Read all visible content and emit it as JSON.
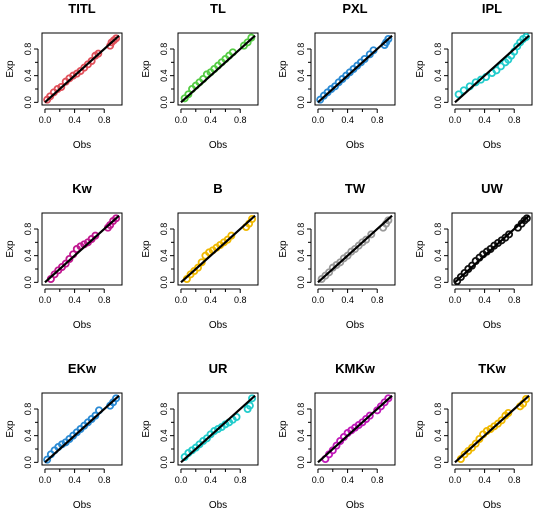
{
  "chart_data": [
    {
      "type": "scatter",
      "title": "TITL",
      "xlabel": "Obs",
      "ylabel": "Exp",
      "color": "#e0505a",
      "xlim": [
        0,
        1
      ],
      "ylim": [
        0,
        1
      ],
      "xticks": [
        "0.0",
        "0.4",
        "0.8"
      ],
      "yticks": [
        "0.0",
        "0.4",
        "0.8"
      ],
      "points": [
        [
          0.03,
          0.04
        ],
        [
          0.07,
          0.09
        ],
        [
          0.12,
          0.15
        ],
        [
          0.17,
          0.2
        ],
        [
          0.22,
          0.23
        ],
        [
          0.28,
          0.31
        ],
        [
          0.33,
          0.36
        ],
        [
          0.38,
          0.4
        ],
        [
          0.43,
          0.43
        ],
        [
          0.48,
          0.47
        ],
        [
          0.53,
          0.52
        ],
        [
          0.58,
          0.57
        ],
        [
          0.63,
          0.62
        ],
        [
          0.68,
          0.7
        ],
        [
          0.72,
          0.73
        ],
        [
          0.88,
          0.85
        ],
        [
          0.9,
          0.9
        ],
        [
          0.93,
          0.93
        ],
        [
          0.96,
          0.96
        ]
      ],
      "line": [
        [
          0,
          0
        ],
        [
          1,
          1
        ]
      ]
    },
    {
      "type": "scatter",
      "title": "TL",
      "xlabel": "Obs",
      "ylabel": "Exp",
      "color": "#55cc44",
      "xlim": [
        0,
        1
      ],
      "ylim": [
        0,
        1
      ],
      "xticks": [
        "0.0",
        "0.4",
        "0.8"
      ],
      "yticks": [
        "0.0",
        "0.4",
        "0.8"
      ],
      "points": [
        [
          0.05,
          0.06
        ],
        [
          0.1,
          0.12
        ],
        [
          0.15,
          0.2
        ],
        [
          0.2,
          0.25
        ],
        [
          0.25,
          0.3
        ],
        [
          0.3,
          0.35
        ],
        [
          0.35,
          0.42
        ],
        [
          0.4,
          0.45
        ],
        [
          0.45,
          0.5
        ],
        [
          0.5,
          0.55
        ],
        [
          0.55,
          0.6
        ],
        [
          0.6,
          0.65
        ],
        [
          0.65,
          0.7
        ],
        [
          0.7,
          0.75
        ],
        [
          0.85,
          0.85
        ],
        [
          0.9,
          0.9
        ],
        [
          0.95,
          0.97
        ]
      ],
      "line": [
        [
          0,
          0
        ],
        [
          1,
          1
        ]
      ]
    },
    {
      "type": "scatter",
      "title": "PXL",
      "xlabel": "Obs",
      "ylabel": "Exp",
      "color": "#2a8ad4",
      "xlim": [
        0,
        1
      ],
      "ylim": [
        0,
        1
      ],
      "xticks": [
        "0.0",
        "0.4",
        "0.8"
      ],
      "yticks": [
        "0.0",
        "0.4",
        "0.8"
      ],
      "points": [
        [
          0.03,
          0.04
        ],
        [
          0.08,
          0.1
        ],
        [
          0.13,
          0.15
        ],
        [
          0.18,
          0.2
        ],
        [
          0.23,
          0.24
        ],
        [
          0.28,
          0.3
        ],
        [
          0.33,
          0.35
        ],
        [
          0.38,
          0.4
        ],
        [
          0.43,
          0.45
        ],
        [
          0.48,
          0.5
        ],
        [
          0.53,
          0.55
        ],
        [
          0.58,
          0.6
        ],
        [
          0.63,
          0.65
        ],
        [
          0.7,
          0.72
        ],
        [
          0.75,
          0.78
        ],
        [
          0.9,
          0.86
        ],
        [
          0.92,
          0.9
        ],
        [
          0.95,
          0.95
        ]
      ],
      "line": [
        [
          0,
          0
        ],
        [
          1,
          1
        ]
      ]
    },
    {
      "type": "scatter",
      "title": "IPL",
      "xlabel": "Obs",
      "ylabel": "Exp",
      "color": "#22cccc",
      "xlim": [
        0,
        1
      ],
      "ylim": [
        0,
        1
      ],
      "xticks": [
        "0.0",
        "0.4",
        "0.8"
      ],
      "yticks": [
        "0.0",
        "0.4",
        "0.8"
      ],
      "points": [
        [
          0.05,
          0.12
        ],
        [
          0.12,
          0.18
        ],
        [
          0.2,
          0.24
        ],
        [
          0.28,
          0.3
        ],
        [
          0.35,
          0.34
        ],
        [
          0.42,
          0.38
        ],
        [
          0.5,
          0.44
        ],
        [
          0.56,
          0.48
        ],
        [
          0.62,
          0.54
        ],
        [
          0.68,
          0.6
        ],
        [
          0.72,
          0.64
        ],
        [
          0.76,
          0.7
        ],
        [
          0.8,
          0.76
        ],
        [
          0.84,
          0.84
        ],
        [
          0.88,
          0.9
        ],
        [
          0.92,
          0.95
        ],
        [
          0.96,
          0.98
        ]
      ],
      "line": [
        [
          0,
          0
        ],
        [
          1,
          1
        ]
      ]
    },
    {
      "type": "scatter",
      "title": "Kw",
      "xlabel": "Obs",
      "ylabel": "Exp",
      "color": "#c01890",
      "xlim": [
        0,
        1
      ],
      "ylim": [
        0,
        1
      ],
      "xticks": [
        "0.0",
        "0.4",
        "0.8"
      ],
      "yticks": [
        "0.0",
        "0.4",
        "0.8"
      ],
      "points": [
        [
          0.08,
          0.05
        ],
        [
          0.13,
          0.12
        ],
        [
          0.18,
          0.18
        ],
        [
          0.23,
          0.23
        ],
        [
          0.28,
          0.28
        ],
        [
          0.33,
          0.35
        ],
        [
          0.38,
          0.42
        ],
        [
          0.43,
          0.5
        ],
        [
          0.48,
          0.54
        ],
        [
          0.53,
          0.57
        ],
        [
          0.58,
          0.6
        ],
        [
          0.63,
          0.65
        ],
        [
          0.68,
          0.7
        ],
        [
          0.85,
          0.82
        ],
        [
          0.88,
          0.86
        ],
        [
          0.92,
          0.92
        ],
        [
          0.96,
          0.96
        ]
      ],
      "line": [
        [
          0,
          0
        ],
        [
          1,
          1
        ]
      ]
    },
    {
      "type": "scatter",
      "title": "B",
      "xlabel": "Obs",
      "ylabel": "Exp",
      "color": "#f0b800",
      "xlim": [
        0,
        1
      ],
      "ylim": [
        0,
        1
      ],
      "xticks": [
        "0.0",
        "0.4",
        "0.8"
      ],
      "yticks": [
        "0.0",
        "0.4",
        "0.8"
      ],
      "points": [
        [
          0.08,
          0.05
        ],
        [
          0.13,
          0.12
        ],
        [
          0.18,
          0.17
        ],
        [
          0.23,
          0.22
        ],
        [
          0.28,
          0.3
        ],
        [
          0.33,
          0.4
        ],
        [
          0.38,
          0.45
        ],
        [
          0.43,
          0.48
        ],
        [
          0.48,
          0.52
        ],
        [
          0.53,
          0.56
        ],
        [
          0.58,
          0.6
        ],
        [
          0.63,
          0.64
        ],
        [
          0.68,
          0.7
        ],
        [
          0.88,
          0.83
        ],
        [
          0.92,
          0.88
        ],
        [
          0.96,
          0.95
        ]
      ],
      "line": [
        [
          0,
          0
        ],
        [
          1,
          1
        ]
      ]
    },
    {
      "type": "scatter",
      "title": "TW",
      "xlabel": "Obs",
      "ylabel": "Exp",
      "color": "#999999",
      "xlim": [
        0,
        1
      ],
      "ylim": [
        0,
        1
      ],
      "xticks": [
        "0.0",
        "0.4",
        "0.8"
      ],
      "yticks": [
        "0.0",
        "0.4",
        "0.8"
      ],
      "points": [
        [
          0.05,
          0.05
        ],
        [
          0.1,
          0.1
        ],
        [
          0.15,
          0.15
        ],
        [
          0.2,
          0.22
        ],
        [
          0.25,
          0.26
        ],
        [
          0.3,
          0.3
        ],
        [
          0.35,
          0.36
        ],
        [
          0.4,
          0.4
        ],
        [
          0.45,
          0.46
        ],
        [
          0.5,
          0.5
        ],
        [
          0.55,
          0.55
        ],
        [
          0.6,
          0.6
        ],
        [
          0.65,
          0.64
        ],
        [
          0.72,
          0.72
        ],
        [
          0.88,
          0.82
        ],
        [
          0.92,
          0.88
        ],
        [
          0.95,
          0.93
        ]
      ],
      "line": [
        [
          0,
          0
        ],
        [
          1,
          1
        ]
      ]
    },
    {
      "type": "scatter",
      "title": "UW",
      "xlabel": "Obs",
      "ylabel": "Exp",
      "color": "#111111",
      "xlim": [
        0,
        1
      ],
      "ylim": [
        0,
        1
      ],
      "xticks": [
        "0.0",
        "0.4",
        "0.8"
      ],
      "yticks": [
        "0.0",
        "0.4",
        "0.8"
      ],
      "points": [
        [
          0.03,
          0.02
        ],
        [
          0.08,
          0.08
        ],
        [
          0.13,
          0.14
        ],
        [
          0.18,
          0.2
        ],
        [
          0.23,
          0.25
        ],
        [
          0.28,
          0.32
        ],
        [
          0.33,
          0.37
        ],
        [
          0.38,
          0.42
        ],
        [
          0.43,
          0.46
        ],
        [
          0.48,
          0.5
        ],
        [
          0.53,
          0.55
        ],
        [
          0.58,
          0.59
        ],
        [
          0.63,
          0.63
        ],
        [
          0.68,
          0.67
        ],
        [
          0.73,
          0.72
        ],
        [
          0.85,
          0.82
        ],
        [
          0.9,
          0.88
        ],
        [
          0.94,
          0.93
        ],
        [
          0.97,
          0.96
        ]
      ],
      "line": [
        [
          0,
          0
        ],
        [
          1,
          1
        ]
      ]
    },
    {
      "type": "scatter",
      "title": "EKw",
      "xlabel": "Obs",
      "ylabel": "Exp",
      "color": "#2a8ad4",
      "xlim": [
        0,
        1
      ],
      "ylim": [
        0,
        1
      ],
      "xticks": [
        "0.0",
        "0.4",
        "0.8"
      ],
      "yticks": [
        "0.0",
        "0.4",
        "0.8"
      ],
      "points": [
        [
          0.03,
          0.04
        ],
        [
          0.08,
          0.12
        ],
        [
          0.13,
          0.18
        ],
        [
          0.18,
          0.23
        ],
        [
          0.23,
          0.27
        ],
        [
          0.28,
          0.3
        ],
        [
          0.33,
          0.35
        ],
        [
          0.38,
          0.4
        ],
        [
          0.43,
          0.45
        ],
        [
          0.48,
          0.5
        ],
        [
          0.53,
          0.55
        ],
        [
          0.58,
          0.6
        ],
        [
          0.63,
          0.65
        ],
        [
          0.68,
          0.7
        ],
        [
          0.73,
          0.78
        ],
        [
          0.88,
          0.85
        ],
        [
          0.92,
          0.9
        ],
        [
          0.96,
          0.96
        ]
      ],
      "line": [
        [
          0,
          0
        ],
        [
          1,
          1
        ]
      ]
    },
    {
      "type": "scatter",
      "title": "UR",
      "xlabel": "Obs",
      "ylabel": "Exp",
      "color": "#22cccc",
      "xlim": [
        0,
        1
      ],
      "ylim": [
        0,
        1
      ],
      "xticks": [
        "0.0",
        "0.4",
        "0.8"
      ],
      "yticks": [
        "0.0",
        "0.4",
        "0.8"
      ],
      "points": [
        [
          0.05,
          0.08
        ],
        [
          0.1,
          0.14
        ],
        [
          0.15,
          0.18
        ],
        [
          0.2,
          0.22
        ],
        [
          0.25,
          0.27
        ],
        [
          0.3,
          0.32
        ],
        [
          0.35,
          0.36
        ],
        [
          0.4,
          0.42
        ],
        [
          0.45,
          0.47
        ],
        [
          0.5,
          0.5
        ],
        [
          0.55,
          0.53
        ],
        [
          0.6,
          0.57
        ],
        [
          0.65,
          0.6
        ],
        [
          0.7,
          0.64
        ],
        [
          0.75,
          0.68
        ],
        [
          0.9,
          0.8
        ],
        [
          0.93,
          0.85
        ],
        [
          0.96,
          0.96
        ]
      ],
      "line": [
        [
          0,
          0
        ],
        [
          1,
          1
        ]
      ]
    },
    {
      "type": "scatter",
      "title": "KMKw",
      "xlabel": "Obs",
      "ylabel": "Exp",
      "color": "#c018b8",
      "xlim": [
        0,
        1
      ],
      "ylim": [
        0,
        1
      ],
      "xticks": [
        "0.0",
        "0.4",
        "0.8"
      ],
      "yticks": [
        "0.0",
        "0.4",
        "0.8"
      ],
      "points": [
        [
          0.1,
          0.05
        ],
        [
          0.15,
          0.12
        ],
        [
          0.2,
          0.18
        ],
        [
          0.25,
          0.25
        ],
        [
          0.3,
          0.32
        ],
        [
          0.35,
          0.38
        ],
        [
          0.4,
          0.44
        ],
        [
          0.45,
          0.48
        ],
        [
          0.5,
          0.52
        ],
        [
          0.55,
          0.56
        ],
        [
          0.6,
          0.6
        ],
        [
          0.65,
          0.65
        ],
        [
          0.7,
          0.7
        ],
        [
          0.8,
          0.78
        ],
        [
          0.85,
          0.84
        ],
        [
          0.9,
          0.9
        ],
        [
          0.95,
          0.96
        ]
      ],
      "line": [
        [
          0,
          0
        ],
        [
          1,
          1
        ]
      ]
    },
    {
      "type": "scatter",
      "title": "TKw",
      "xlabel": "Obs",
      "ylabel": "Exp",
      "color": "#f0b800",
      "xlim": [
        0,
        1
      ],
      "ylim": [
        0,
        1
      ],
      "xticks": [
        "0.0",
        "0.4",
        "0.8"
      ],
      "yticks": [
        "0.0",
        "0.4",
        "0.8"
      ],
      "points": [
        [
          0.08,
          0.05
        ],
        [
          0.13,
          0.12
        ],
        [
          0.18,
          0.17
        ],
        [
          0.23,
          0.22
        ],
        [
          0.28,
          0.28
        ],
        [
          0.33,
          0.35
        ],
        [
          0.38,
          0.42
        ],
        [
          0.43,
          0.47
        ],
        [
          0.48,
          0.5
        ],
        [
          0.53,
          0.54
        ],
        [
          0.58,
          0.58
        ],
        [
          0.63,
          0.63
        ],
        [
          0.68,
          0.7
        ],
        [
          0.72,
          0.74
        ],
        [
          0.88,
          0.84
        ],
        [
          0.92,
          0.88
        ],
        [
          0.96,
          0.95
        ]
      ],
      "line": [
        [
          0,
          0
        ],
        [
          1,
          1
        ]
      ]
    }
  ]
}
